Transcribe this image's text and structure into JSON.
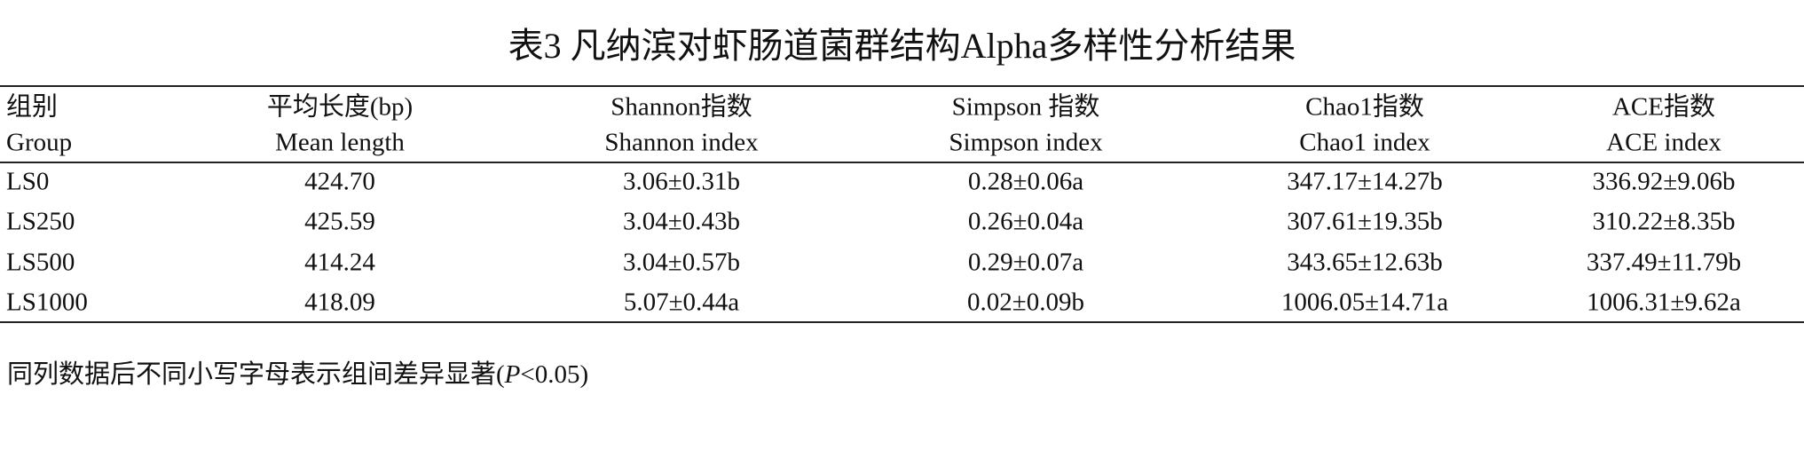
{
  "title": "表3 凡纳滨对虾肠道菌群结构Alpha多样性分析结果",
  "table": {
    "header": [
      [
        "组别",
        "Group"
      ],
      [
        "平均长度(bp)",
        "Mean length"
      ],
      [
        "Shannon指数",
        "Shannon index"
      ],
      [
        "Simpson 指数",
        "Simpson index"
      ],
      [
        "Chao1指数",
        "Chao1 index"
      ],
      [
        "ACE指数",
        "ACE index"
      ]
    ],
    "rows": [
      [
        "LS0",
        "424.70",
        "3.06±0.31b",
        "0.28±0.06a",
        "347.17±14.27b",
        "336.92±9.06b"
      ],
      [
        "LS250",
        "425.59",
        "3.04±0.43b",
        "0.26±0.04a",
        "307.61±19.35b",
        "310.22±8.35b"
      ],
      [
        "LS500",
        "414.24",
        "3.04±0.57b",
        "0.29±0.07a",
        "343.65±12.63b",
        "337.49±11.79b"
      ],
      [
        "LS1000",
        "418.09",
        "5.07±0.44a",
        "0.02±0.09b",
        "1006.05±14.71a",
        "1006.31±9.62a"
      ]
    ]
  },
  "footnote": {
    "before": "同列数据后不同小写字母表示组间差异显著(",
    "italic": "P",
    "after": "<0.05)"
  }
}
